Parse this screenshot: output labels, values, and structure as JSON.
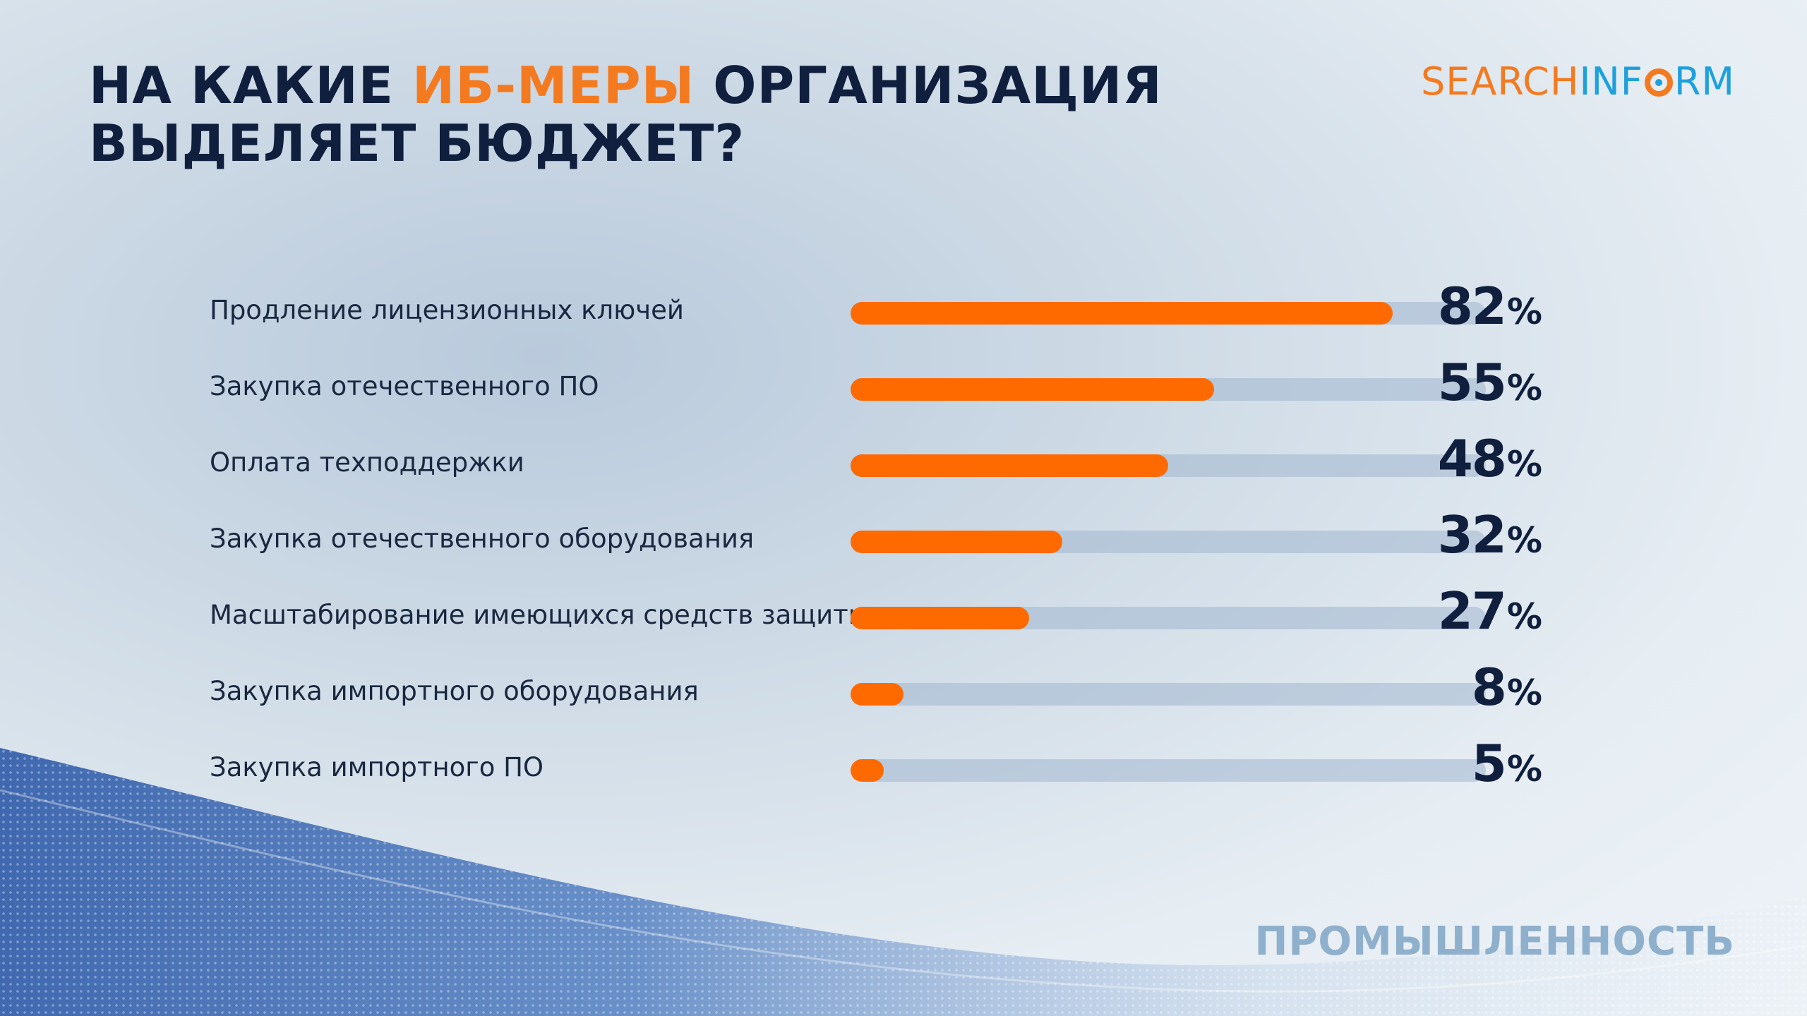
{
  "title": {
    "part1": "НА КАКИЕ ",
    "accent": "ИБ-МЕРЫ",
    "part2": " ОРГАНИЗАЦИЯ",
    "line2": "ВЫДЕЛЯЕТ БЮДЖЕТ?"
  },
  "logo": {
    "search": "SEARCH",
    "inf": "INF",
    "rm": "RM"
  },
  "footer": "ПРОМЫШЛЕННОСТЬ",
  "colors": {
    "accent": "#f47a20",
    "bar_fill": "#ff6a00",
    "title": "#0f1f3d",
    "footer": "#8fb0cc"
  },
  "chart_data": {
    "type": "bar",
    "orientation": "horizontal",
    "title": "НА КАКИЕ ИБ-МЕРЫ ОРГАНИЗАЦИЯ ВЫДЕЛЯЕТ БЮДЖЕТ?",
    "xlabel": "",
    "ylabel": "",
    "xlim": [
      0,
      100
    ],
    "unit": "%",
    "categories": [
      "Продление лицензионных ключей",
      "Закупка отечественного ПО",
      "Оплата техподдержки",
      "Закупка отечественного оборудования",
      "Масштабирование имеющихся средств защиты",
      "Закупка импортного оборудования",
      "Закупка импортного ПО"
    ],
    "values": [
      82,
      55,
      48,
      32,
      27,
      8,
      5
    ]
  }
}
